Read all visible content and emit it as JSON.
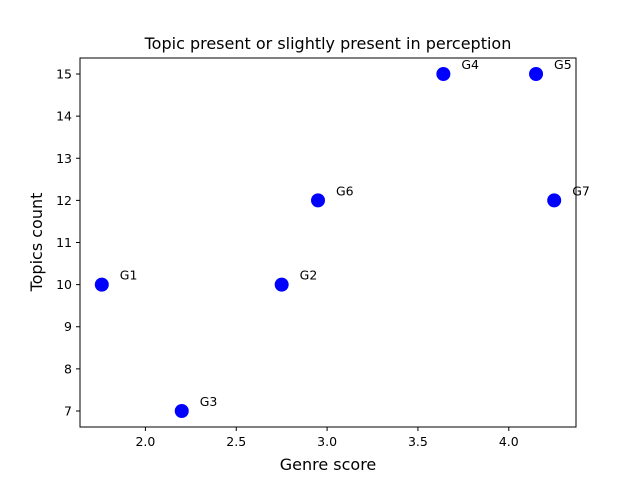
{
  "chart_data": {
    "type": "scatter",
    "title": "Topic present or slightly present in perception",
    "xlabel": "Genre score",
    "ylabel": "Topics count",
    "xlim": [
      1.64,
      4.37
    ],
    "ylim": [
      6.62,
      15.38
    ],
    "xticks": [
      "2.0",
      "2.5",
      "3.0",
      "3.5",
      "4.0"
    ],
    "yticks": [
      "7",
      "8",
      "9",
      "10",
      "11",
      "12",
      "13",
      "14",
      "15"
    ],
    "grid": false,
    "marker_color": "#0000ff",
    "points": [
      {
        "label": "G1",
        "x": 1.76,
        "y": 10
      },
      {
        "label": "G2",
        "x": 2.75,
        "y": 10
      },
      {
        "label": "G3",
        "x": 2.2,
        "y": 7
      },
      {
        "label": "G4",
        "x": 3.64,
        "y": 15
      },
      {
        "label": "G5",
        "x": 4.15,
        "y": 15
      },
      {
        "label": "G6",
        "x": 2.95,
        "y": 12
      },
      {
        "label": "G7",
        "x": 4.25,
        "y": 12
      }
    ]
  }
}
